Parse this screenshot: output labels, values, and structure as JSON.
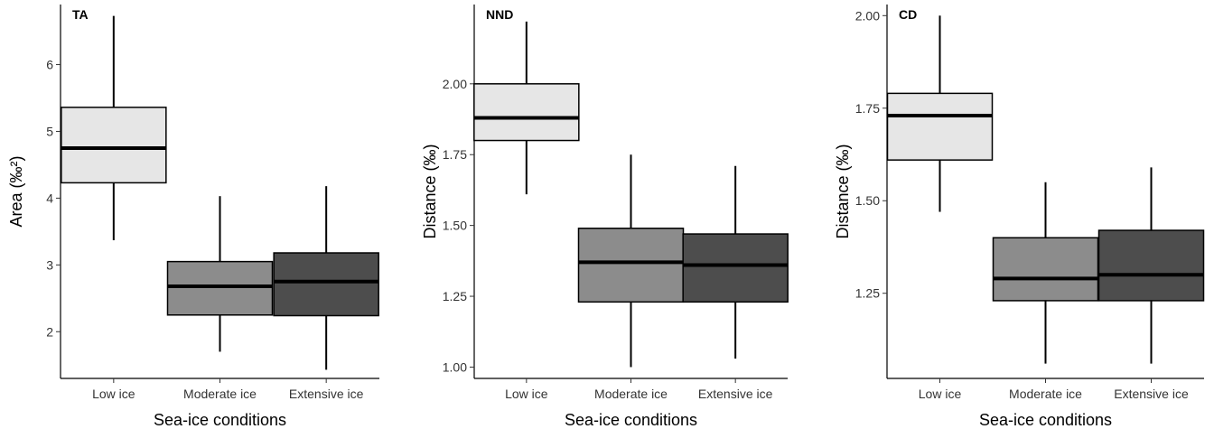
{
  "chart_data": [
    {
      "type": "box",
      "tag": "TA",
      "xlabel": "Sea-ice conditions",
      "ylabel": "Area (‰²)",
      "ylim": [
        1.3,
        6.9
      ],
      "yticks": [
        2,
        3,
        4,
        5,
        6
      ],
      "categories": [
        "Low ice",
        "Moderate ice",
        "Extensive ice"
      ],
      "boxes": [
        {
          "category": "Low ice",
          "min": 3.37,
          "q1": 4.23,
          "median": 4.75,
          "q3": 5.36,
          "max": 6.73,
          "color": "#e6e6e6"
        },
        {
          "category": "Moderate ice",
          "min": 1.7,
          "q1": 2.25,
          "median": 2.68,
          "q3": 3.05,
          "max": 4.03,
          "color": "#8c8c8c"
        },
        {
          "category": "Extensive ice",
          "min": 1.43,
          "q1": 2.24,
          "median": 2.75,
          "q3": 3.18,
          "max": 4.18,
          "color": "#4d4d4d"
        }
      ]
    },
    {
      "type": "box",
      "tag": "NND",
      "xlabel": "Sea-ice conditions",
      "ylabel": "Distance (‰)",
      "ylim": [
        0.96,
        2.28
      ],
      "yticks": [
        "1.00",
        "1.25",
        "1.50",
        "1.75",
        "2.00"
      ],
      "categories": [
        "Low ice",
        "Moderate ice",
        "Extensive ice"
      ],
      "boxes": [
        {
          "category": "Low ice",
          "min": 1.61,
          "q1": 1.8,
          "median": 1.88,
          "q3": 2.0,
          "max": 2.22,
          "color": "#e6e6e6"
        },
        {
          "category": "Moderate ice",
          "min": 1.0,
          "q1": 1.23,
          "median": 1.37,
          "q3": 1.49,
          "max": 1.75,
          "color": "#8c8c8c"
        },
        {
          "category": "Extensive ice",
          "min": 1.03,
          "q1": 1.23,
          "median": 1.36,
          "q3": 1.47,
          "max": 1.71,
          "color": "#4d4d4d"
        }
      ]
    },
    {
      "type": "box",
      "tag": "CD",
      "xlabel": "Sea-ice conditions",
      "ylabel": "Distance (‰)",
      "ylim": [
        1.02,
        2.03
      ],
      "yticks": [
        "1.25",
        "1.50",
        "1.75",
        "2.00"
      ],
      "categories": [
        "Low ice",
        "Moderate ice",
        "Extensive ice"
      ],
      "boxes": [
        {
          "category": "Low ice",
          "min": 1.47,
          "q1": 1.61,
          "median": 1.73,
          "q3": 1.79,
          "max": 2.0,
          "color": "#e6e6e6"
        },
        {
          "category": "Moderate ice",
          "min": 1.06,
          "q1": 1.23,
          "median": 1.29,
          "q3": 1.4,
          "max": 1.55,
          "color": "#8c8c8c"
        },
        {
          "category": "Extensive ice",
          "min": 1.06,
          "q1": 1.23,
          "median": 1.3,
          "q3": 1.42,
          "max": 1.59,
          "color": "#4d4d4d"
        }
      ]
    }
  ]
}
